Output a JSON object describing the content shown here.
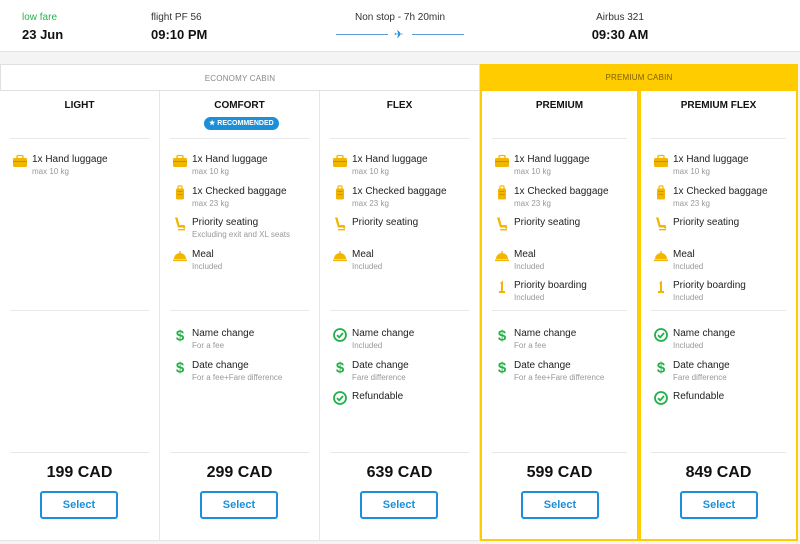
{
  "header": {
    "fare_label": "low fare",
    "date": "23 Jun",
    "flight_label": "flight PF 56",
    "departure_time": "09:10 PM",
    "stops_duration": "Non stop - 7h 20min",
    "aircraft": "Airbus 321",
    "arrival_time": "09:30 AM"
  },
  "cabins": {
    "economy_label": "ECONOMY CABIN",
    "premium_label": "PREMIUM CABIN"
  },
  "colors": {
    "accent_blue": "#1b8fd8",
    "premium_yellow": "#ffcc00",
    "fare_green": "#2bb24c",
    "icon_yellow": "#f2b600",
    "check_green": "#22b14c"
  },
  "columns": [
    {
      "title": "LIGHT",
      "badge": "",
      "features": [
        {
          "icon": "hand-luggage-icon",
          "name": "1x Hand luggage",
          "sub": "max 10 kg"
        }
      ],
      "flex": [],
      "price": "199 CAD",
      "button": "Select"
    },
    {
      "title": "COMFORT",
      "badge": "RECOMMENDED",
      "features": [
        {
          "icon": "hand-luggage-icon",
          "name": "1x Hand luggage",
          "sub": "max 10 kg"
        },
        {
          "icon": "checked-baggage-icon",
          "name": "1x Checked baggage",
          "sub": "max 23 kg"
        },
        {
          "icon": "seat-icon",
          "name": "Priority seating",
          "sub": "Excluding exit and XL seats"
        },
        {
          "icon": "meal-icon",
          "name": "Meal",
          "sub": "Included"
        }
      ],
      "flex": [
        {
          "icon": "dollar-icon",
          "name": "Name change",
          "sub": "For a fee"
        },
        {
          "icon": "dollar-icon",
          "name": "Date change",
          "sub": "For a fee+Fare difference"
        }
      ],
      "price": "299 CAD",
      "button": "Select"
    },
    {
      "title": "FLEX",
      "badge": "",
      "features": [
        {
          "icon": "hand-luggage-icon",
          "name": "1x Hand luggage",
          "sub": "max 10 kg"
        },
        {
          "icon": "checked-baggage-icon",
          "name": "1x Checked baggage",
          "sub": "max 23 kg"
        },
        {
          "icon": "seat-icon",
          "name": "Priority seating",
          "sub": ""
        },
        {
          "icon": "meal-icon",
          "name": "Meal",
          "sub": "Included"
        }
      ],
      "flex": [
        {
          "icon": "check-icon",
          "name": "Name change",
          "sub": "Included"
        },
        {
          "icon": "dollar-icon",
          "name": "Date change",
          "sub": "Fare difference"
        },
        {
          "icon": "check-icon",
          "name": "Refundable",
          "sub": ""
        }
      ],
      "price": "639 CAD",
      "button": "Select"
    },
    {
      "title": "PREMIUM",
      "badge": "",
      "features": [
        {
          "icon": "hand-luggage-icon",
          "name": "1x Hand luggage",
          "sub": "max 10 kg"
        },
        {
          "icon": "checked-baggage-icon",
          "name": "1x Checked baggage",
          "sub": "max 23 kg"
        },
        {
          "icon": "seat-icon",
          "name": "Priority seating",
          "sub": ""
        },
        {
          "icon": "meal-icon",
          "name": "Meal",
          "sub": "Included"
        },
        {
          "icon": "priority-boarding-icon",
          "name": "Priority boarding",
          "sub": "Included"
        }
      ],
      "flex": [
        {
          "icon": "dollar-icon",
          "name": "Name change",
          "sub": "For a fee"
        },
        {
          "icon": "dollar-icon",
          "name": "Date change",
          "sub": "For a fee+Fare difference"
        }
      ],
      "price": "599 CAD",
      "button": "Select"
    },
    {
      "title": "PREMIUM FLEX",
      "badge": "",
      "features": [
        {
          "icon": "hand-luggage-icon",
          "name": "1x Hand luggage",
          "sub": "max 10 kg"
        },
        {
          "icon": "checked-baggage-icon",
          "name": "1x Checked baggage",
          "sub": "max 23 kg"
        },
        {
          "icon": "seat-icon",
          "name": "Priority seating",
          "sub": ""
        },
        {
          "icon": "meal-icon",
          "name": "Meal",
          "sub": "Included"
        },
        {
          "icon": "priority-boarding-icon",
          "name": "Priority boarding",
          "sub": "Included"
        }
      ],
      "flex": [
        {
          "icon": "check-icon",
          "name": "Name change",
          "sub": "Included"
        },
        {
          "icon": "dollar-icon",
          "name": "Date change",
          "sub": "Fare difference"
        },
        {
          "icon": "check-icon",
          "name": "Refundable",
          "sub": ""
        }
      ],
      "price": "849 CAD",
      "button": "Select"
    }
  ]
}
